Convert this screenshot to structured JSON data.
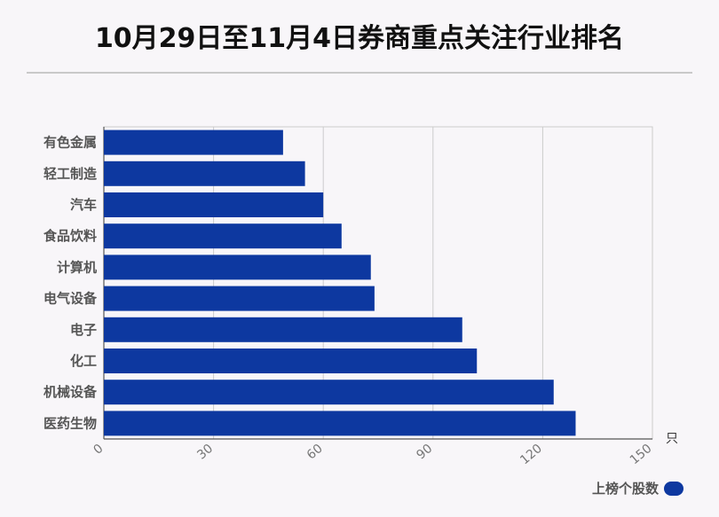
{
  "title": "10月29日至11月4日券商重点关注行业排名",
  "chart_data": {
    "type": "bar",
    "orientation": "horizontal",
    "categories": [
      "有色金属",
      "轻工制造",
      "汽车",
      "食品饮料",
      "计算机",
      "电气设备",
      "电子",
      "化工",
      "机械设备",
      "医药生物"
    ],
    "series": [
      {
        "name": "上榜个股数",
        "values": [
          49,
          55,
          60,
          65,
          73,
          74,
          98,
          102,
          123,
          129
        ]
      }
    ],
    "xlim": [
      0,
      150
    ],
    "xticks": [
      "0",
      "30",
      "60",
      "90",
      "120",
      "150"
    ],
    "unit": "只",
    "grid": true,
    "legend_position": "bottom-right",
    "bar_color": "#0d38a0"
  }
}
